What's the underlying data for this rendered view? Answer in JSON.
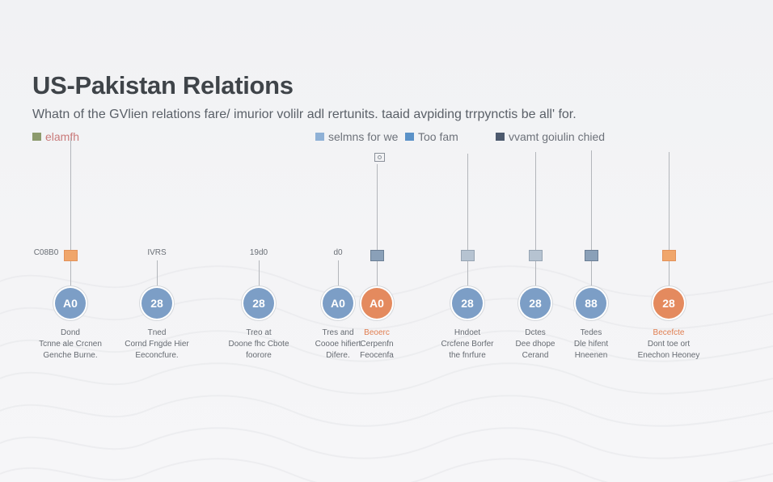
{
  "header": {
    "title": "US-Pakistan Relations",
    "subtitle": "Whatn of the GVlien relations fare/ imurior volilr adl rertunits. taaid avpiding trrpynctis be all' for."
  },
  "legend": [
    {
      "label": "elamfh",
      "color": "#8c9a6d",
      "text_color": "#c97a7a"
    },
    {
      "label": "selmns for we",
      "color": "#8fb1d6",
      "text_color": "#6d727a"
    },
    {
      "label": "Too fam",
      "color": "#5b92c8",
      "text_color": "#6d727a"
    },
    {
      "label": "vvamt goiulin chied",
      "color": "#4d5a6e",
      "text_color": "#6d727a"
    }
  ],
  "accent_colors": {
    "blue": "#7c9ec6",
    "orange": "#e48a5e",
    "marker_orange": "#f0a66b"
  },
  "events": [
    {
      "label": "C08B0",
      "marker": "orange",
      "circle_text": "A0",
      "circle": "blue",
      "desc": [
        "Dond",
        "Tcnne ale Crcnen",
        "Genche Burne."
      ],
      "desc_accent": false
    },
    {
      "label": "IVRS",
      "marker": "",
      "circle_text": "28",
      "circle": "blue",
      "desc": [
        "Tned",
        "Cornd Fngde Hier",
        "Eeconcfure."
      ],
      "desc_accent": false
    },
    {
      "label": "19d0",
      "marker": "",
      "circle_text": "28",
      "circle": "blue",
      "desc": [
        "Treo at",
        "Doone fhc Cbote",
        "foorore"
      ],
      "desc_accent": false
    },
    {
      "label": "d0",
      "marker": "",
      "circle_text": "A0",
      "circle": "blue",
      "desc": [
        "Tres and",
        "Coooe hifiert",
        "Difere."
      ],
      "desc_accent": false
    },
    {
      "label": "",
      "marker": "blue-dark",
      "circle_text": "A0",
      "circle": "orange",
      "desc": [
        "Beoerc",
        "Cerpenfn",
        "Feocenfa"
      ],
      "desc_accent": true
    },
    {
      "label": "",
      "marker": "blue-light",
      "circle_text": "28",
      "circle": "blue",
      "desc": [
        "Hndoet",
        "Crcfene Borfer",
        "the fnrfure"
      ],
      "desc_accent": false
    },
    {
      "label": "",
      "marker": "blue-light",
      "circle_text": "28",
      "circle": "blue",
      "desc": [
        "Dctes",
        "Dee dhope",
        "Cerand"
      ],
      "desc_accent": false
    },
    {
      "label": "",
      "marker": "blue-dark",
      "circle_text": "88",
      "circle": "blue",
      "desc": [
        "Tedes",
        "Dle hifent",
        "Hneenen"
      ],
      "desc_accent": false
    },
    {
      "label": "",
      "marker": "orange",
      "circle_text": "28",
      "circle": "orange",
      "desc": [
        "Becefcte",
        "Dont toe ort",
        "Enechon Heoney"
      ],
      "desc_accent": true
    }
  ]
}
